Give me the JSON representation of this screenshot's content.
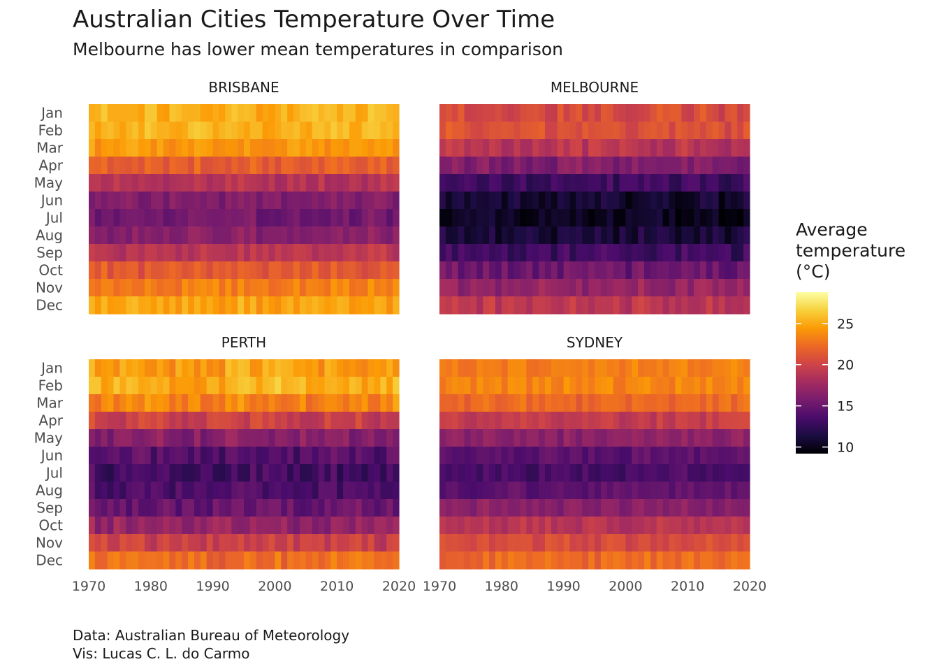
{
  "title": "Australian Cities Temperature Over Time",
  "subtitle": "Melbourne has lower mean temperatures in comparison",
  "caption": {
    "line1": "Data: Australian Bureau of Meteorology",
    "line2": "Vis: Lucas C. L. do Carmo"
  },
  "legend": {
    "title_lines": [
      "Average",
      "temperature",
      "(°C)"
    ],
    "ticks": [
      10,
      15,
      20,
      25
    ],
    "range": [
      9.2,
      28.8
    ]
  },
  "colors": {
    "palette": [
      "#000004",
      "#1b0c41",
      "#4a0c6b",
      "#781c6d",
      "#a52c60",
      "#cf4446",
      "#ed6925",
      "#fb9b06",
      "#f7d13d",
      "#fcffa4"
    ]
  },
  "chart_data": {
    "type": "heatmap",
    "x_label": "",
    "y_label": "",
    "x_ticks": [
      1970,
      1980,
      1990,
      2000,
      2010,
      2020
    ],
    "x_range": [
      1970,
      2020
    ],
    "years": [
      1970,
      2019
    ],
    "months": [
      "Jan",
      "Feb",
      "Mar",
      "Apr",
      "May",
      "Jun",
      "Jul",
      "Aug",
      "Sep",
      "Oct",
      "Nov",
      "Dec"
    ],
    "value_note": "monthly mean temperature (°C) per year; yearly variation noise around typical monthly values",
    "panels": [
      {
        "name": "BRISBANE",
        "monthly_mean": [
          25.4,
          25.3,
          24.2,
          21.6,
          18.6,
          16.1,
          15.4,
          16.4,
          18.9,
          21.4,
          23.2,
          24.8
        ],
        "variation": 0.9
      },
      {
        "name": "MELBOURNE",
        "monthly_mean": [
          20.7,
          20.8,
          19.0,
          16.1,
          13.2,
          10.9,
          10.2,
          11.3,
          13.2,
          15.3,
          17.2,
          19.2
        ],
        "variation": 1.1
      },
      {
        "name": "PERTH",
        "monthly_mean": [
          24.5,
          25.2,
          23.4,
          19.7,
          16.4,
          14.1,
          13.2,
          13.6,
          14.9,
          17.0,
          19.8,
          22.5
        ],
        "variation": 1.2
      },
      {
        "name": "SYDNEY",
        "monthly_mean": [
          23.2,
          23.4,
          22.1,
          19.5,
          16.6,
          14.3,
          13.5,
          14.5,
          16.6,
          18.8,
          20.5,
          22.2
        ],
        "variation": 0.8
      }
    ]
  }
}
